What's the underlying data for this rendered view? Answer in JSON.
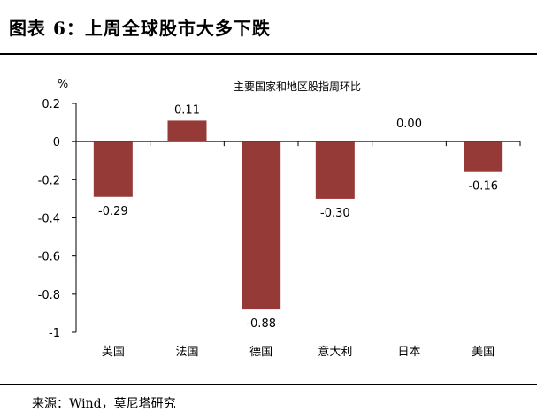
{
  "figure": {
    "title": "图表 6：上周全球股市大多下跌",
    "source": "来源：Wind，莫尼塔研究"
  },
  "colors": {
    "bar": "#963A38",
    "axis": "#000000"
  },
  "chart_data": {
    "type": "bar",
    "title": "主要国家和地区股指周环比",
    "ylabel": "%",
    "xlabel": "",
    "categories": [
      "英国",
      "法国",
      "德国",
      "意大利",
      "日本",
      "美国"
    ],
    "values": [
      -0.29,
      0.11,
      -0.88,
      -0.3,
      0.0,
      -0.16
    ],
    "data_labels": [
      "-0.29",
      "0.11",
      "-0.88",
      "-0.30",
      "0.00",
      "-0.16"
    ],
    "ylim": [
      -1,
      0.2
    ],
    "yticks": [
      0.2,
      0,
      -0.2,
      -0.4,
      -0.6,
      -0.8,
      -1
    ],
    "ytick_labels": [
      "0.2",
      "0",
      "-0.2",
      "-0.4",
      "-0.6",
      "-0.8",
      "-1"
    ],
    "grid": false,
    "legend": "none"
  }
}
